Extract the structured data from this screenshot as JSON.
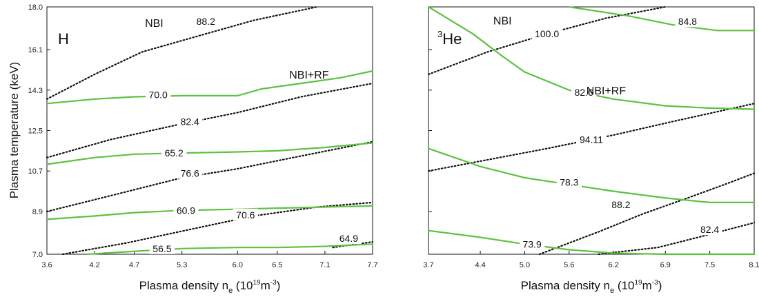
{
  "chart_data": [
    {
      "type": "line",
      "panel_label": "H",
      "ylabel": "Plasma temperature (keV)",
      "xlabel_main": "Plasma density n",
      "xlabel_sub": "e",
      "xlabel_unit_open": " (10",
      "xlabel_unit_exp1": "19",
      "xlabel_unit_mid": "m",
      "xlabel_unit_exp2": "-3",
      "xlabel_unit_close": ")",
      "xlim": [
        3.6,
        7.7
      ],
      "ylim": [
        7.0,
        18.0
      ],
      "xticks": [
        "3.6",
        "4.2",
        "4.7",
        "5.3",
        "6.0",
        "6.5",
        "7.1",
        "7.7"
      ],
      "yticks": [
        "7.0",
        "8.9",
        "10.7",
        "12.5",
        "14.3",
        "16.1",
        "18.0"
      ],
      "annotations": [
        {
          "text": "NBI",
          "x": 4.95,
          "y": 17.3
        },
        {
          "text": "NBI+RF",
          "x": 6.9,
          "y": 15.0
        }
      ],
      "series": [
        {
          "name": "NBI",
          "label": "88.2",
          "label_at": [
            5.6,
            17.35
          ],
          "points": [
            [
              3.6,
              13.9
            ],
            [
              4.2,
              15.0
            ],
            [
              4.8,
              16.0
            ],
            [
              5.5,
              16.7
            ],
            [
              6.2,
              17.4
            ],
            [
              7.0,
              18.0
            ]
          ]
        },
        {
          "name": "NBI",
          "label": "82.4",
          "label_at": [
            5.4,
            12.9
          ],
          "points": [
            [
              3.6,
              11.3
            ],
            [
              4.4,
              12.1
            ],
            [
              5.3,
              12.8
            ],
            [
              6.0,
              13.3
            ],
            [
              6.8,
              14.0
            ],
            [
              7.7,
              14.6
            ]
          ]
        },
        {
          "name": "NBI",
          "label": "76.6",
          "label_at": [
            5.4,
            10.6
          ],
          "points": [
            [
              3.6,
              8.9
            ],
            [
              4.4,
              9.6
            ],
            [
              5.3,
              10.4
            ],
            [
              6.0,
              10.8
            ],
            [
              6.7,
              11.3
            ],
            [
              7.7,
              12.0
            ]
          ]
        },
        {
          "name": "NBI",
          "label": "70.6",
          "label_at": [
            6.1,
            8.75
          ],
          "points": [
            [
              3.8,
              7.0
            ],
            [
              4.6,
              7.5
            ],
            [
              5.4,
              8.1
            ],
            [
              6.2,
              8.7
            ],
            [
              7.0,
              9.1
            ],
            [
              7.7,
              9.3
            ]
          ]
        },
        {
          "name": "NBI",
          "label": "64.9",
          "label_at": [
            7.4,
            7.7
          ],
          "points": [
            [
              7.2,
              7.3
            ],
            [
              7.5,
              7.45
            ],
            [
              7.7,
              7.55
            ]
          ]
        },
        {
          "name": "NBI+RF",
          "label": "70.0",
          "label_at": [
            5.0,
            14.1
          ],
          "points": [
            [
              3.6,
              13.7
            ],
            [
              4.2,
              13.9
            ],
            [
              4.7,
              14.0
            ],
            [
              5.3,
              14.05
            ],
            [
              6.0,
              14.05
            ],
            [
              6.3,
              14.35
            ],
            [
              6.8,
              14.6
            ],
            [
              7.3,
              14.85
            ],
            [
              7.7,
              15.15
            ]
          ]
        },
        {
          "name": "NBI+RF",
          "label": "65.2",
          "label_at": [
            5.2,
            11.5
          ],
          "points": [
            [
              3.6,
              11.0
            ],
            [
              4.2,
              11.3
            ],
            [
              4.7,
              11.45
            ],
            [
              5.3,
              11.5
            ],
            [
              6.0,
              11.55
            ],
            [
              6.5,
              11.6
            ],
            [
              7.1,
              11.75
            ],
            [
              7.7,
              11.95
            ]
          ]
        },
        {
          "name": "NBI+RF",
          "label": "60.9",
          "label_at": [
            5.35,
            8.95
          ],
          "points": [
            [
              3.6,
              8.55
            ],
            [
              4.2,
              8.7
            ],
            [
              4.7,
              8.85
            ],
            [
              5.3,
              8.95
            ],
            [
              6.0,
              9.0
            ],
            [
              6.5,
              9.05
            ],
            [
              7.1,
              9.1
            ],
            [
              7.7,
              9.15
            ]
          ]
        },
        {
          "name": "NBI+RF",
          "label": "56.5",
          "label_at": [
            5.05,
            7.25
          ],
          "points": [
            [
              4.1,
              7.0
            ],
            [
              4.8,
              7.15
            ],
            [
              5.3,
              7.25
            ],
            [
              6.0,
              7.3
            ],
            [
              6.5,
              7.3
            ],
            [
              7.1,
              7.35
            ],
            [
              7.7,
              7.45
            ]
          ]
        }
      ]
    },
    {
      "type": "line",
      "panel_label": "He",
      "panel_label_sup": "3",
      "ylabel": "",
      "xlabel_main": "Plasma density n",
      "xlabel_sub": "e",
      "xlabel_unit_open": " (10",
      "xlabel_unit_exp1": "19",
      "xlabel_unit_mid": "m",
      "xlabel_unit_exp2": "-3",
      "xlabel_unit_close": ")",
      "xlim": [
        3.7,
        8.1
      ],
      "ylim": [
        7.0,
        18.0
      ],
      "xticks": [
        "3.7",
        "4.4",
        "5.0",
        "5.6",
        "6.2",
        "6.9",
        "7.5",
        "8.1"
      ],
      "yticks": [],
      "annotations": [
        {
          "text": "NBI",
          "x": 4.7,
          "y": 17.4
        },
        {
          "text": "NBI+RF",
          "x": 6.1,
          "y": 14.3
        }
      ],
      "series": [
        {
          "name": "NBI",
          "label": "100.0",
          "label_at": [
            5.3,
            16.8
          ],
          "points": [
            [
              3.7,
              15.0
            ],
            [
              4.5,
              16.0
            ],
            [
              5.3,
              16.8
            ],
            [
              6.1,
              17.5
            ],
            [
              6.9,
              18.0
            ]
          ]
        },
        {
          "name": "NBI",
          "label": "94.11",
          "label_at": [
            5.9,
            12.1
          ],
          "points": [
            [
              3.7,
              10.7
            ],
            [
              4.5,
              11.2
            ],
            [
              5.3,
              11.7
            ],
            [
              6.2,
              12.3
            ],
            [
              7.0,
              12.9
            ],
            [
              8.1,
              13.7
            ]
          ]
        },
        {
          "name": "NBI",
          "label": "88.2",
          "label_at": [
            6.3,
            9.2
          ],
          "points": [
            [
              5.2,
              7.0
            ],
            [
              6.0,
              8.0
            ],
            [
              6.6,
              8.8
            ],
            [
              7.2,
              9.5
            ],
            [
              7.7,
              10.1
            ],
            [
              8.1,
              10.6
            ]
          ]
        },
        {
          "name": "NBI",
          "label": "82.4",
          "label_at": [
            7.5,
            8.1
          ],
          "points": [
            [
              6.0,
              7.0
            ],
            [
              6.8,
              7.3
            ],
            [
              7.4,
              7.8
            ],
            [
              8.1,
              8.4
            ]
          ]
        },
        {
          "name": "NBI+RF",
          "label": "84.8",
          "label_at": [
            7.2,
            17.35
          ],
          "points": [
            [
              5.6,
              18.0
            ],
            [
              6.4,
              17.6
            ],
            [
              7.0,
              17.2
            ],
            [
              7.6,
              16.95
            ],
            [
              8.1,
              16.95
            ]
          ]
        },
        {
          "name": "NBI+RF",
          "label": "82.6",
          "label_at": [
            5.8,
            14.2
          ],
          "points": [
            [
              3.7,
              18.0
            ],
            [
              4.3,
              16.8
            ],
            [
              4.7,
              15.8
            ],
            [
              5.0,
              15.1
            ],
            [
              5.6,
              14.3
            ],
            [
              6.2,
              13.9
            ],
            [
              6.9,
              13.6
            ],
            [
              7.5,
              13.5
            ],
            [
              8.1,
              13.45
            ]
          ]
        },
        {
          "name": "NBI+RF",
          "label": "78.3",
          "label_at": [
            5.6,
            10.2
          ],
          "points": [
            [
              3.7,
              11.7
            ],
            [
              4.4,
              10.9
            ],
            [
              5.0,
              10.4
            ],
            [
              5.6,
              10.1
            ],
            [
              6.2,
              9.8
            ],
            [
              6.9,
              9.5
            ],
            [
              7.5,
              9.3
            ],
            [
              8.1,
              9.3
            ]
          ]
        },
        {
          "name": "NBI+RF",
          "label": "73.9",
          "label_at": [
            5.1,
            7.45
          ],
          "points": [
            [
              3.7,
              8.05
            ],
            [
              4.4,
              7.75
            ],
            [
              5.0,
              7.45
            ],
            [
              5.6,
              7.2
            ],
            [
              6.2,
              7.05
            ],
            [
              6.9,
              7.0
            ],
            [
              8.1,
              7.0
            ]
          ]
        }
      ]
    }
  ]
}
